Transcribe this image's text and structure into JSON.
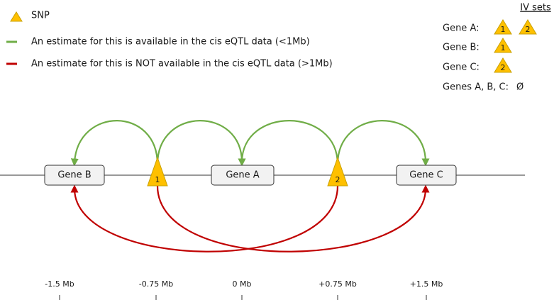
{
  "legend": {
    "snp": "SNP",
    "available": "An estimate for this is available in the cis eQTL data (<1Mb)",
    "not_available": "An estimate for this is NOT available in the cis eQTL data (>1Mb)"
  },
  "iv_sets": {
    "title": "IV sets",
    "rows": [
      {
        "label": "Gene A:",
        "snps": [
          "1",
          "2"
        ]
      },
      {
        "label": "Gene B:",
        "snps": [
          "1"
        ]
      },
      {
        "label": "Gene C:",
        "snps": [
          "2"
        ]
      },
      {
        "label": "Genes A, B, C:",
        "empty": "Ø"
      }
    ]
  },
  "genes": [
    "Gene B",
    "Gene A",
    "Gene C"
  ],
  "snps": [
    "1",
    "2"
  ],
  "axis_labels": [
    "-1.5 Mb",
    "-0.75 Mb",
    "0 Mb",
    "+0.75 Mb",
    "+1.5 Mb"
  ]
}
